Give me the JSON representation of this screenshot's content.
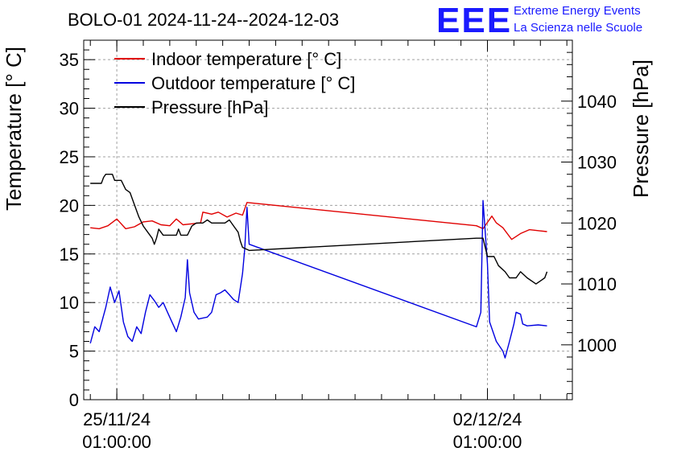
{
  "title": "BOLO-01 2024-11-24--2024-12-03",
  "logo": {
    "mark": "EEE",
    "line1": "Extreme Energy Events",
    "line2": "La Scienza nelle Scuole",
    "color": "#1a1aff"
  },
  "chart_data": {
    "type": "line",
    "title": "BOLO-01 2024-11-24--2024-12-03",
    "xlabel": "",
    "ylabel": "Temperature [° C]",
    "y2label": "Pressure [hPa]",
    "ylim": [
      0,
      37
    ],
    "y2lim": [
      991,
      1050
    ],
    "xlim": [
      "2024-11-24T10:00",
      "2024-12-03T15:30"
    ],
    "grid": true,
    "legend_position": "top-left",
    "x_ticks": [
      {
        "x": "2024-11-25T01:00",
        "label": "25/11/24\n01:00:00"
      },
      {
        "x": "2024-12-02T01:00",
        "label": "02/12/24\n01:00:00"
      }
    ],
    "y_ticks": [
      0,
      5,
      10,
      15,
      20,
      25,
      30,
      35
    ],
    "y2_ticks": [
      1000,
      1010,
      1020,
      1030,
      1040
    ],
    "series": [
      {
        "name": "Indoor temperature [° C]",
        "axis": "left",
        "color": "#e00000",
        "points": [
          [
            "2024-11-24T13:00",
            17.7
          ],
          [
            "2024-11-24T17:00",
            17.6
          ],
          [
            "2024-11-24T21:00",
            17.9
          ],
          [
            "2024-11-25T01:00",
            18.6
          ],
          [
            "2024-11-25T05:00",
            17.6
          ],
          [
            "2024-11-25T09:00",
            17.8
          ],
          [
            "2024-11-25T13:00",
            18.3
          ],
          [
            "2024-11-25T17:00",
            18.4
          ],
          [
            "2024-11-25T21:00",
            18.0
          ],
          [
            "2024-11-26T01:00",
            17.9
          ],
          [
            "2024-11-26T04:00",
            18.6
          ],
          [
            "2024-11-26T07:00",
            18.0
          ],
          [
            "2024-11-26T11:00",
            18.1
          ],
          [
            "2024-11-26T15:00",
            18.2
          ],
          [
            "2024-11-26T16:00",
            19.3
          ],
          [
            "2024-11-26T20:00",
            19.1
          ],
          [
            "2024-11-26T23:00",
            19.3
          ],
          [
            "2024-11-27T03:00",
            18.8
          ],
          [
            "2024-11-27T07:00",
            19.2
          ],
          [
            "2024-11-27T10:00",
            19.0
          ],
          [
            "2024-11-27T12:00",
            20.3
          ],
          [
            "2024-12-01T20:00",
            17.9
          ],
          [
            "2024-12-01T23:00",
            17.6
          ],
          [
            "2024-12-02T03:00",
            18.9
          ],
          [
            "2024-12-02T05:00",
            18.2
          ],
          [
            "2024-12-02T08:00",
            17.7
          ],
          [
            "2024-12-02T12:00",
            16.5
          ],
          [
            "2024-12-02T16:00",
            17.1
          ],
          [
            "2024-12-02T20:00",
            17.5
          ],
          [
            "2024-12-03T00:00",
            17.4
          ],
          [
            "2024-12-03T04:00",
            17.3
          ]
        ]
      },
      {
        "name": "Outdoor temperature [° C]",
        "axis": "left",
        "color": "#0000e0",
        "points": [
          [
            "2024-11-24T13:00",
            5.8
          ],
          [
            "2024-11-24T15:00",
            7.5
          ],
          [
            "2024-11-24T17:00",
            7.0
          ],
          [
            "2024-11-24T20:00",
            9.5
          ],
          [
            "2024-11-24T22:00",
            11.6
          ],
          [
            "2024-11-25T00:00",
            10.0
          ],
          [
            "2024-11-25T02:00",
            11.2
          ],
          [
            "2024-11-25T04:00",
            8.0
          ],
          [
            "2024-11-25T06:00",
            6.5
          ],
          [
            "2024-11-25T08:00",
            6.0
          ],
          [
            "2024-11-25T10:00",
            7.5
          ],
          [
            "2024-11-25T12:00",
            6.8
          ],
          [
            "2024-11-25T14:00",
            9.0
          ],
          [
            "2024-11-25T16:00",
            10.8
          ],
          [
            "2024-11-25T18:00",
            10.2
          ],
          [
            "2024-11-25T20:00",
            9.5
          ],
          [
            "2024-11-25T22:00",
            10.0
          ],
          [
            "2024-11-26T00:00",
            9.0
          ],
          [
            "2024-11-26T02:00",
            8.0
          ],
          [
            "2024-11-26T04:00",
            7.0
          ],
          [
            "2024-11-26T06:00",
            8.5
          ],
          [
            "2024-11-26T08:00",
            10.5
          ],
          [
            "2024-11-26T09:00",
            14.4
          ],
          [
            "2024-11-26T10:00",
            11.0
          ],
          [
            "2024-11-26T12:00",
            9.0
          ],
          [
            "2024-11-26T14:00",
            8.3
          ],
          [
            "2024-11-26T18:00",
            8.5
          ],
          [
            "2024-11-26T20:00",
            9.0
          ],
          [
            "2024-11-26T22:00",
            10.8
          ],
          [
            "2024-11-27T00:00",
            11.0
          ],
          [
            "2024-11-27T02:00",
            11.3
          ],
          [
            "2024-11-27T04:00",
            10.8
          ],
          [
            "2024-11-27T06:00",
            10.3
          ],
          [
            "2024-11-27T08:00",
            10.0
          ],
          [
            "2024-11-27T10:00",
            13.0
          ],
          [
            "2024-11-27T11:00",
            15.5
          ],
          [
            "2024-11-27T12:00",
            19.8
          ],
          [
            "2024-11-27T13:00",
            16.0
          ],
          [
            "2024-12-01T20:00",
            7.5
          ],
          [
            "2024-12-01T22:00",
            9.0
          ],
          [
            "2024-12-01T23:00",
            20.5
          ],
          [
            "2024-12-02T01:00",
            14.0
          ],
          [
            "2024-12-02T02:00",
            8.0
          ],
          [
            "2024-12-02T05:00",
            6.0
          ],
          [
            "2024-12-02T08:00",
            5.0
          ],
          [
            "2024-12-02T09:00",
            4.3
          ],
          [
            "2024-12-02T11:00",
            6.0
          ],
          [
            "2024-12-02T13:00",
            7.8
          ],
          [
            "2024-12-02T14:00",
            9.0
          ],
          [
            "2024-12-02T16:00",
            8.8
          ],
          [
            "2024-12-02T17:00",
            7.8
          ],
          [
            "2024-12-02T19:00",
            7.6
          ],
          [
            "2024-12-03T00:00",
            7.7
          ],
          [
            "2024-12-03T04:00",
            7.6
          ]
        ]
      },
      {
        "name": "Pressure [hPa]",
        "axis": "right",
        "color": "#000000",
        "points": [
          [
            "2024-11-24T13:00",
            1026.5
          ],
          [
            "2024-11-24T18:00",
            1026.5
          ],
          [
            "2024-11-24T19:00",
            1027.5
          ],
          [
            "2024-11-24T20:00",
            1028.0
          ],
          [
            "2024-11-24T23:00",
            1028.0
          ],
          [
            "2024-11-25T00:00",
            1027.0
          ],
          [
            "2024-11-25T03:00",
            1027.0
          ],
          [
            "2024-11-25T05:00",
            1025.5
          ],
          [
            "2024-11-25T07:00",
            1025.0
          ],
          [
            "2024-11-25T09:00",
            1023.0
          ],
          [
            "2024-11-25T11:00",
            1021.0
          ],
          [
            "2024-11-25T13:00",
            1019.5
          ],
          [
            "2024-11-25T15:00",
            1018.5
          ],
          [
            "2024-11-25T17:00",
            1017.5
          ],
          [
            "2024-11-25T18:00",
            1016.5
          ],
          [
            "2024-11-25T19:00",
            1017.5
          ],
          [
            "2024-11-25T20:00",
            1019.0
          ],
          [
            "2024-11-25T22:00",
            1018.0
          ],
          [
            "2024-11-26T04:00",
            1018.0
          ],
          [
            "2024-11-26T05:00",
            1019.0
          ],
          [
            "2024-11-26T06:00",
            1018.0
          ],
          [
            "2024-11-26T09:00",
            1018.0
          ],
          [
            "2024-11-26T11:00",
            1019.5
          ],
          [
            "2024-11-26T13:00",
            1020.0
          ],
          [
            "2024-11-26T16:00",
            1020.0
          ],
          [
            "2024-11-26T18:00",
            1020.5
          ],
          [
            "2024-11-26T20:00",
            1020.0
          ],
          [
            "2024-11-27T02:00",
            1020.0
          ],
          [
            "2024-11-27T04:00",
            1020.5
          ],
          [
            "2024-11-27T06:00",
            1019.5
          ],
          [
            "2024-11-27T08:00",
            1018.5
          ],
          [
            "2024-11-27T09:00",
            1017.0
          ],
          [
            "2024-11-27T10:00",
            1016.0
          ],
          [
            "2024-11-27T13:00",
            1015.5
          ],
          [
            "2024-12-01T20:00",
            1017.5
          ],
          [
            "2024-12-01T23:00",
            1017.5
          ],
          [
            "2024-12-02T01:00",
            1014.5
          ],
          [
            "2024-12-02T04:00",
            1014.5
          ],
          [
            "2024-12-02T06:00",
            1013.0
          ],
          [
            "2024-12-02T09:00",
            1012.0
          ],
          [
            "2024-12-02T11:00",
            1011.0
          ],
          [
            "2024-12-02T14:00",
            1011.0
          ],
          [
            "2024-12-02T16:00",
            1012.0
          ],
          [
            "2024-12-02T19:00",
            1011.0
          ],
          [
            "2024-12-02T23:00",
            1010.0
          ],
          [
            "2024-12-03T01:00",
            1010.5
          ],
          [
            "2024-12-03T03:00",
            1011.0
          ],
          [
            "2024-12-03T04:00",
            1012.0
          ]
        ]
      }
    ]
  }
}
